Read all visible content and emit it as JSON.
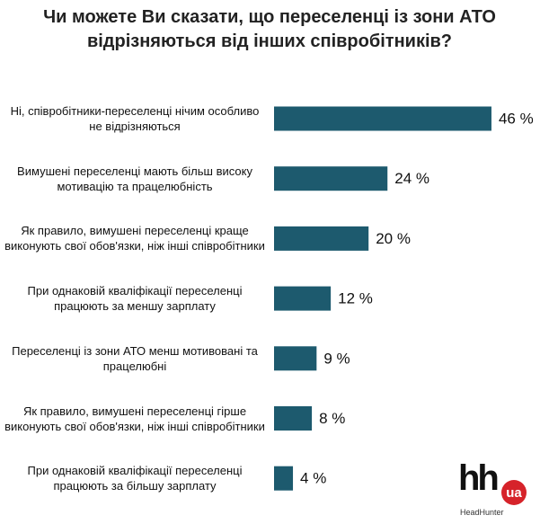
{
  "chart_data": {
    "type": "bar",
    "orientation": "horizontal",
    "title": "Чи можете Ви сказати, що переселенці із зони АТО відрізняються від інших співробітників?",
    "categories": [
      "Ні, співробітники-переселенці  нічим особливо не відрізняються",
      "Вимушені переселенці мають більш високу мотивацію та працелюбність",
      "Як правило, вимушені переселенці краще виконують свої обов'язки, ніж інші співробітники",
      "При однаковій кваліфікації переселенці працюють за меншу зарплату",
      "Переселенці із зони АТО менш мотивовані та працелюбні",
      "Як правило, вимушені переселенці гірше виконують свої обов'язки, ніж інші співробітники",
      "При однаковій кваліфікації переселенці працюють за більшу зарплату"
    ],
    "values": [
      46,
      24,
      20,
      12,
      9,
      8,
      4
    ],
    "value_labels": [
      "46 %",
      "24 %",
      "20 %",
      "12 %",
      "9 %",
      "8 %",
      "4 %"
    ],
    "color": "#1d5a6e"
  },
  "logo": {
    "mark": "hh",
    "badge": "ua",
    "brand": "HeadHunter"
  }
}
